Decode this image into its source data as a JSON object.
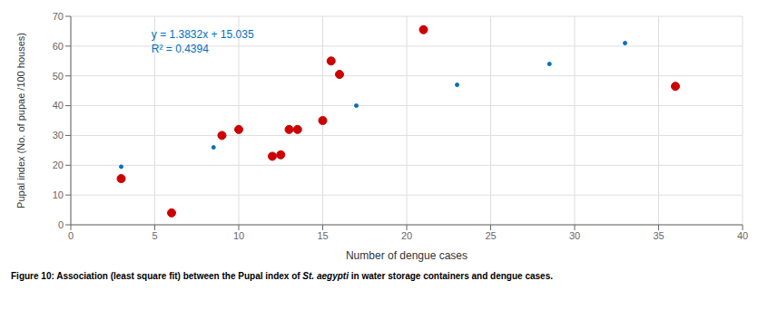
{
  "chart_data": {
    "type": "scatter",
    "xlabel": "Number of dengue cases",
    "ylabel": "Pupal index (No. of pupae /100 houses)",
    "xlim": [
      0,
      40
    ],
    "ylim": [
      0,
      70
    ],
    "xticks": [
      0,
      5,
      10,
      15,
      20,
      25,
      30,
      35,
      40
    ],
    "yticks": [
      0,
      10,
      20,
      30,
      40,
      50,
      60,
      70
    ],
    "grid": true,
    "series": [
      {
        "color": "#0070c0",
        "marker": "dot",
        "x": [
          3,
          8.5,
          13,
          17,
          23,
          28.5,
          33
        ],
        "values": [
          19.5,
          26,
          32.5,
          40,
          47,
          54,
          61
        ]
      },
      {
        "color": "#cc0000",
        "marker": "circle",
        "x": [
          3,
          6,
          9,
          10,
          12,
          12.5,
          13,
          13.5,
          15,
          15.5,
          16,
          21,
          36
        ],
        "values": [
          15.5,
          4,
          30,
          32,
          23,
          23.5,
          32,
          32,
          35,
          55,
          50.5,
          65.5,
          46.5
        ]
      }
    ],
    "annotations": [
      {
        "text": "y = 1.3832x + 15.035",
        "color": "#0070c0"
      },
      {
        "text": "R² = 0.4394",
        "color": "#0070c0"
      }
    ],
    "caption": [
      {
        "text": "Figure 10: Association (least square fit) between the Pupal index of ",
        "style": "normal"
      },
      {
        "text": "St. aegypti",
        "style": "italic"
      },
      {
        "text": " in water storage containers and dengue cases.",
        "style": "normal"
      }
    ]
  }
}
